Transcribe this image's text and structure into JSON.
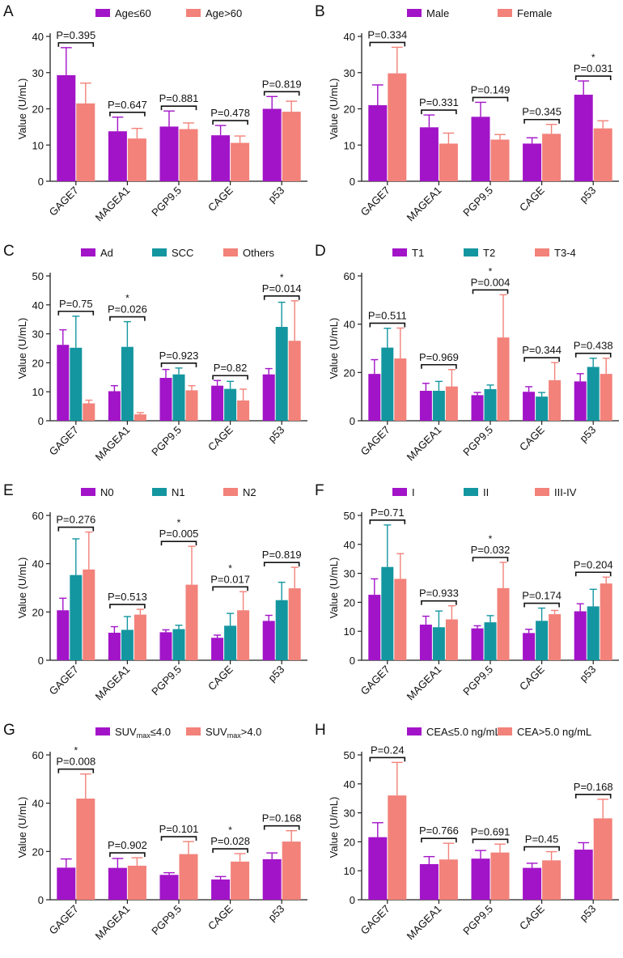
{
  "categories": [
    "GAGE7",
    "MAGEA1",
    "PGP9.5",
    "CAGE",
    "p53"
  ],
  "ylabel": "Value (U/mL)",
  "chart_data": [
    {
      "panel": "A",
      "type": "bar",
      "ylim": [
        0,
        40
      ],
      "yticks": [
        0,
        10,
        20,
        30,
        40
      ],
      "categories": [
        "GAGE7",
        "MAGEA1",
        "PGP9.5",
        "CAGE",
        "p53"
      ],
      "series": [
        {
          "name": "Age≤60",
          "values": [
            29.3,
            13.8,
            15.1,
            12.7,
            20.0
          ],
          "errors": [
            7.6,
            3.9,
            4.3,
            2.7,
            3.4
          ]
        },
        {
          "name": "Age>60",
          "values": [
            21.5,
            11.8,
            14.4,
            10.6,
            19.2
          ],
          "errors": [
            5.6,
            2.8,
            1.7,
            1.9,
            2.9
          ]
        }
      ],
      "annotations": [
        {
          "category": 0,
          "text": "P=0.395",
          "star": false
        },
        {
          "category": 1,
          "text": "P=0.647",
          "star": false
        },
        {
          "category": 2,
          "text": "P=0.881",
          "star": false
        },
        {
          "category": 3,
          "text": "P=0.478",
          "star": false
        },
        {
          "category": 4,
          "text": "P=0.819",
          "star": false
        }
      ]
    },
    {
      "panel": "B",
      "type": "bar",
      "ylim": [
        0,
        40
      ],
      "yticks": [
        0,
        10,
        20,
        30,
        40
      ],
      "categories": [
        "GAGE7",
        "MAGEA1",
        "PGP9.5",
        "CAGE",
        "p53"
      ],
      "series": [
        {
          "name": "Male",
          "values": [
            21.0,
            14.9,
            17.8,
            10.4,
            23.9
          ],
          "errors": [
            5.6,
            3.4,
            4.0,
            1.6,
            3.8
          ]
        },
        {
          "name": "Female",
          "values": [
            29.8,
            10.4,
            11.5,
            13.1,
            14.6
          ],
          "errors": [
            7.2,
            2.9,
            1.4,
            2.6,
            2.1
          ]
        }
      ],
      "annotations": [
        {
          "category": 0,
          "text": "P=0.334",
          "star": false
        },
        {
          "category": 1,
          "text": "P=0.331",
          "star": false
        },
        {
          "category": 2,
          "text": "P=0.149",
          "star": false
        },
        {
          "category": 3,
          "text": "P=0.345",
          "star": false
        },
        {
          "category": 4,
          "text": "P=0.031",
          "star": true
        }
      ]
    },
    {
      "panel": "C",
      "type": "bar",
      "ylim": [
        0,
        50
      ],
      "yticks": [
        0,
        10,
        20,
        30,
        40,
        50
      ],
      "categories": [
        "GAGE7",
        "MAGEA1",
        "PGP9.5",
        "CAGE",
        "p53"
      ],
      "series": [
        {
          "name": "Ad",
          "values": [
            26.2,
            10.2,
            14.8,
            12.1,
            16.0
          ],
          "errors": [
            5.2,
            1.9,
            2.9,
            1.8,
            2.0
          ]
        },
        {
          "name": "SCC",
          "values": [
            25.2,
            25.5,
            16.0,
            11.0,
            32.4
          ],
          "errors": [
            10.9,
            8.7,
            2.2,
            2.6,
            8.5
          ]
        },
        {
          "name": "Others",
          "values": [
            6.0,
            2.2,
            10.5,
            7.0,
            27.6
          ],
          "errors": [
            1.1,
            0.6,
            1.6,
            3.9,
            13.8
          ]
        }
      ],
      "annotations": [
        {
          "category": 0,
          "text": "P=0.75",
          "star": false
        },
        {
          "category": 1,
          "text": "P=0.026",
          "star": true
        },
        {
          "category": 2,
          "text": "P=0.923",
          "star": false
        },
        {
          "category": 3,
          "text": "P=0.82",
          "star": false
        },
        {
          "category": 4,
          "text": "P=0.014",
          "star": true
        }
      ]
    },
    {
      "panel": "D",
      "type": "bar",
      "ylim": [
        0,
        60
      ],
      "yticks": [
        0,
        20,
        40,
        60
      ],
      "categories": [
        "GAGE7",
        "MAGEA1",
        "PGP9.5",
        "CAGE",
        "p53"
      ],
      "series": [
        {
          "name": "T1",
          "values": [
            19.4,
            12.4,
            10.6,
            12.0,
            16.3
          ],
          "errors": [
            5.9,
            3.1,
            1.1,
            2.1,
            3.2
          ]
        },
        {
          "name": "T2",
          "values": [
            30.3,
            12.4,
            13.1,
            10.0,
            22.3
          ],
          "errors": [
            8.0,
            3.9,
            1.7,
            1.7,
            3.6
          ]
        },
        {
          "name": "T3-4",
          "values": [
            25.8,
            14.2,
            34.5,
            16.8,
            19.4
          ],
          "errors": [
            12.6,
            7.0,
            17.7,
            7.3,
            6.5
          ]
        }
      ],
      "annotations": [
        {
          "category": 0,
          "text": "P=0.511",
          "star": false
        },
        {
          "category": 1,
          "text": "P=0.969",
          "star": false
        },
        {
          "category": 2,
          "text": "P=0.004",
          "star": true
        },
        {
          "category": 3,
          "text": "P=0.344",
          "star": false
        },
        {
          "category": 4,
          "text": "P=0.438",
          "star": false
        }
      ]
    },
    {
      "panel": "E",
      "type": "bar",
      "ylim": [
        0,
        60
      ],
      "yticks": [
        0,
        20,
        40,
        60
      ],
      "categories": [
        "GAGE7",
        "MAGEA1",
        "PGP9.5",
        "CAGE",
        "p53"
      ],
      "series": [
        {
          "name": "N0",
          "values": [
            20.7,
            11.4,
            11.6,
            9.3,
            16.3
          ],
          "errors": [
            5.0,
            2.5,
            1.0,
            1.1,
            2.3
          ]
        },
        {
          "name": "N1",
          "values": [
            35.3,
            12.6,
            12.9,
            14.3,
            24.9
          ],
          "errors": [
            15.0,
            5.5,
            1.6,
            5.1,
            7.4
          ]
        },
        {
          "name": "N2",
          "values": [
            37.6,
            18.9,
            31.3,
            20.7,
            29.8
          ],
          "errors": [
            15.5,
            2.2,
            15.9,
            7.7,
            8.7
          ]
        }
      ],
      "annotations": [
        {
          "category": 0,
          "text": "P=0.276",
          "star": false
        },
        {
          "category": 1,
          "text": "P=0.513",
          "star": false
        },
        {
          "category": 2,
          "text": "P=0.005",
          "star": true
        },
        {
          "category": 3,
          "text": "P=0.017",
          "star": true
        },
        {
          "category": 4,
          "text": "P=0.819",
          "star": false
        }
      ]
    },
    {
      "panel": "F",
      "type": "bar",
      "ylim": [
        0,
        50
      ],
      "yticks": [
        0,
        10,
        20,
        30,
        40,
        50
      ],
      "categories": [
        "GAGE7",
        "MAGEA1",
        "PGP9.5",
        "CAGE",
        "p53"
      ],
      "series": [
        {
          "name": "I",
          "values": [
            22.6,
            12.3,
            11.0,
            9.4,
            16.9
          ],
          "errors": [
            5.5,
            2.9,
            0.9,
            1.3,
            2.6
          ]
        },
        {
          "name": "II",
          "values": [
            32.2,
            11.4,
            13.1,
            13.6,
            18.6
          ],
          "errors": [
            14.5,
            5.6,
            2.3,
            4.4,
            5.9
          ]
        },
        {
          "name": "III-IV",
          "values": [
            28.1,
            14.1,
            24.9,
            15.9,
            26.5
          ],
          "errors": [
            8.7,
            4.7,
            8.9,
            1.3,
            2.2
          ]
        }
      ],
      "annotations": [
        {
          "category": 0,
          "text": "P=0.71",
          "star": false
        },
        {
          "category": 1,
          "text": "P=0.933",
          "star": false
        },
        {
          "category": 2,
          "text": "P=0.032",
          "star": true
        },
        {
          "category": 3,
          "text": "P=0.174",
          "star": false
        },
        {
          "category": 4,
          "text": "P=0.204",
          "star": false
        }
      ]
    },
    {
      "panel": "G",
      "type": "bar",
      "ylim": [
        0,
        60
      ],
      "yticks": [
        0,
        20,
        40,
        60
      ],
      "categories": [
        "GAGE7",
        "MAGEA1",
        "PGP9.5",
        "CAGE",
        "p53"
      ],
      "legend_rich": [
        {
          "prefix": "SUV",
          "sub": "max",
          "suffix": "≤4.0"
        },
        {
          "prefix": "SUV",
          "sub": "max",
          "suffix": ">4.0"
        }
      ],
      "series": [
        {
          "name": "SUVmax≤4.0",
          "values": [
            13.3,
            13.2,
            10.3,
            8.4,
            16.8
          ],
          "errors": [
            3.6,
            3.9,
            0.9,
            1.2,
            2.6
          ]
        },
        {
          "name": "SUVmax>4.0",
          "values": [
            41.9,
            14.1,
            18.9,
            15.8,
            24.1
          ],
          "errors": [
            10.2,
            3.3,
            5.2,
            3.3,
            4.5
          ]
        }
      ],
      "annotations": [
        {
          "category": 0,
          "text": "P=0.008",
          "star": true
        },
        {
          "category": 1,
          "text": "P=0.902",
          "star": false
        },
        {
          "category": 2,
          "text": "P=0.101",
          "star": false
        },
        {
          "category": 3,
          "text": "P=0.028",
          "star": true
        },
        {
          "category": 4,
          "text": "P=0.168",
          "star": false
        }
      ]
    },
    {
      "panel": "H",
      "type": "bar",
      "ylim": [
        0,
        50
      ],
      "yticks": [
        0,
        10,
        20,
        30,
        40,
        50
      ],
      "categories": [
        "GAGE7",
        "MAGEA1",
        "PGP9.5",
        "CAGE",
        "p53"
      ],
      "series": [
        {
          "name": "CEA≤5.0 ng/mL",
          "values": [
            21.6,
            12.3,
            14.2,
            11.0,
            17.3
          ],
          "errors": [
            5.0,
            2.6,
            2.8,
            1.6,
            2.4
          ]
        },
        {
          "name": "CEA>5.0 ng/mL",
          "values": [
            36.0,
            13.9,
            16.3,
            13.6,
            28.1
          ],
          "errors": [
            11.4,
            5.6,
            2.9,
            3.0,
            6.6
          ]
        }
      ],
      "annotations": [
        {
          "category": 0,
          "text": "P=0.24",
          "star": false
        },
        {
          "category": 1,
          "text": "P=0.766",
          "star": false
        },
        {
          "category": 2,
          "text": "P=0.691",
          "star": false
        },
        {
          "category": 3,
          "text": "P=0.45",
          "star": false
        },
        {
          "category": 4,
          "text": "P=0.168",
          "star": false
        }
      ]
    }
  ],
  "colors": {
    "two": [
      "#a214c8",
      "#f2827a"
    ],
    "three": [
      "#a214c8",
      "#1496a0",
      "#f2827a"
    ],
    "axis": "#222222"
  }
}
